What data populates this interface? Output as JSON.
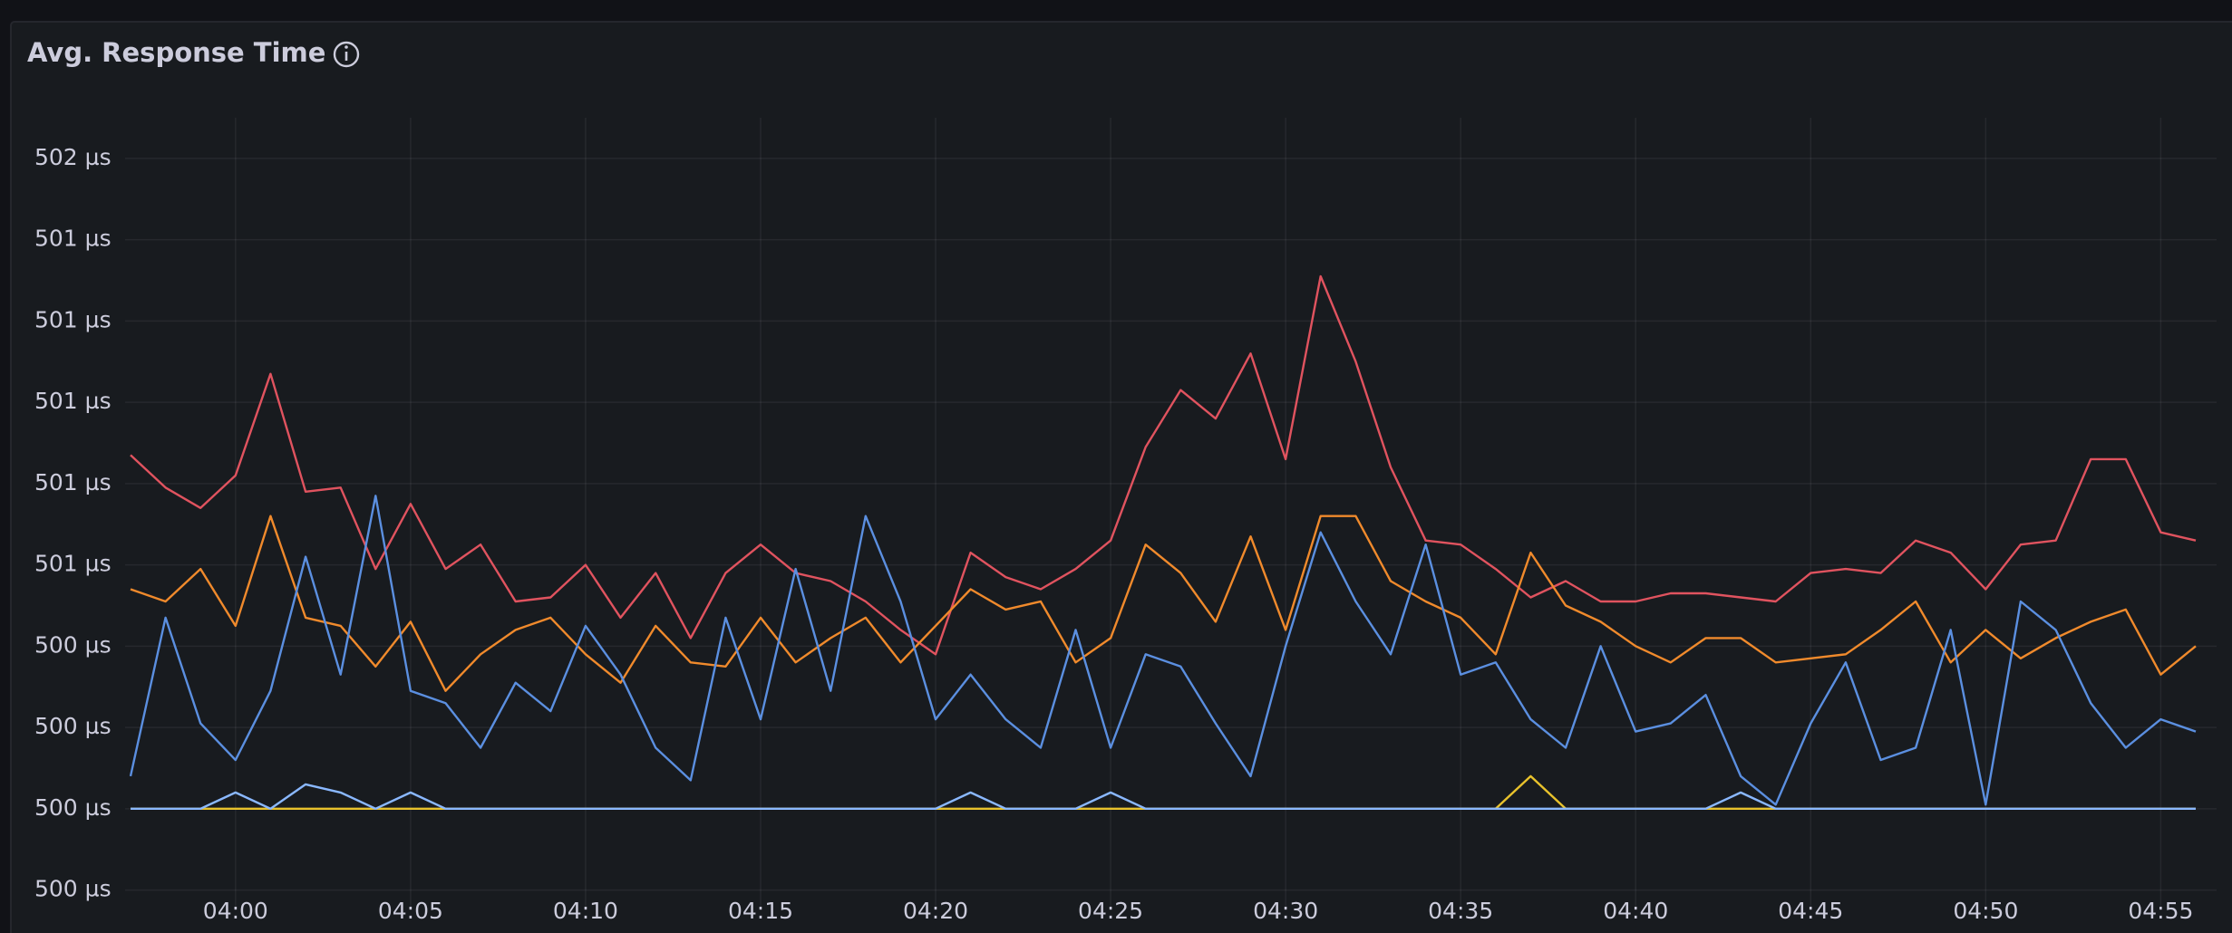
{
  "chart_data": {
    "type": "line",
    "title": "Avg. Response Time",
    "x": [
      "03:57",
      "03:58",
      "03:59",
      "04:00",
      "04:01",
      "04:02",
      "04:03",
      "04:04",
      "04:05",
      "04:06",
      "04:07",
      "04:08",
      "04:09",
      "04:10",
      "04:11",
      "04:12",
      "04:13",
      "04:14",
      "04:15",
      "04:16",
      "04:17",
      "04:18",
      "04:19",
      "04:20",
      "04:21",
      "04:22",
      "04:23",
      "04:24",
      "04:25",
      "04:26",
      "04:27",
      "04:28",
      "04:29",
      "04:30",
      "04:31",
      "04:32",
      "04:33",
      "04:34",
      "04:35",
      "04:36",
      "04:37",
      "04:38",
      "04:39",
      "04:40",
      "04:41",
      "04:42",
      "04:43",
      "04:44",
      "04:45",
      "04:46",
      "04:47",
      "04:48",
      "04:49",
      "04:50",
      "04:51",
      "04:52",
      "04:53",
      "04:54",
      "04:55",
      "04:56"
    ],
    "xticks": [
      "04:00",
      "04:05",
      "04:10",
      "04:15",
      "04:20",
      "04:25",
      "04:30",
      "04:35",
      "04:40",
      "04:45",
      "04:50",
      "04:55"
    ],
    "ylim": [
      499.75,
      501.7
    ],
    "yticks": [
      {
        "value": 499.8,
        "label": "500 µs"
      },
      {
        "value": 500.0,
        "label": "500 µs"
      },
      {
        "value": 500.2,
        "label": "500 µs"
      },
      {
        "value": 500.4,
        "label": "500 µs"
      },
      {
        "value": 500.6,
        "label": "501 µs"
      },
      {
        "value": 500.8,
        "label": "501 µs"
      },
      {
        "value": 501.0,
        "label": "501 µs"
      },
      {
        "value": 501.2,
        "label": "501 µs"
      },
      {
        "value": 501.4,
        "label": "501 µs"
      },
      {
        "value": 501.6,
        "label": "502 µs"
      }
    ],
    "grid": true,
    "series": [
      {
        "color": "#e0535f",
        "values": [
          500.87,
          500.79,
          500.74,
          500.82,
          501.07,
          500.78,
          500.79,
          500.59,
          500.75,
          500.59,
          500.65,
          500.51,
          500.52,
          500.6,
          500.47,
          500.58,
          500.42,
          500.58,
          500.65,
          500.58,
          500.56,
          500.51,
          500.44,
          500.38,
          500.63,
          500.57,
          500.54,
          500.59,
          500.66,
          500.89,
          501.03,
          500.96,
          501.12,
          500.86,
          501.31,
          501.1,
          500.84,
          500.66,
          500.65,
          500.59,
          500.52,
          500.56,
          500.51,
          500.51,
          500.53,
          500.53,
          500.52,
          500.51,
          500.58,
          500.59,
          500.58,
          500.66,
          500.63,
          500.54,
          500.65,
          500.66,
          500.86,
          500.86,
          500.68,
          500.66
        ]
      },
      {
        "color": "#f08a2c",
        "values": [
          500.54,
          500.51,
          500.59,
          500.45,
          500.72,
          500.47,
          500.45,
          500.35,
          500.46,
          500.29,
          500.38,
          500.44,
          500.47,
          500.38,
          500.31,
          500.45,
          500.36,
          500.35,
          500.47,
          500.36,
          500.42,
          500.47,
          500.36,
          500.45,
          500.54,
          500.49,
          500.51,
          500.36,
          500.42,
          500.65,
          500.58,
          500.46,
          500.67,
          500.44,
          500.72,
          500.72,
          500.56,
          500.51,
          500.47,
          500.38,
          500.63,
          500.5,
          500.46,
          500.4,
          500.36,
          500.42,
          500.42,
          500.36,
          500.37,
          500.38,
          500.44,
          500.51,
          500.36,
          500.44,
          500.37,
          500.42,
          500.46,
          500.49,
          500.33,
          500.4
        ]
      },
      {
        "color": "#5b8fe0",
        "values": [
          500.08,
          500.47,
          500.21,
          500.12,
          500.29,
          500.62,
          500.33,
          500.77,
          500.29,
          500.26,
          500.15,
          500.31,
          500.24,
          500.45,
          500.33,
          500.15,
          500.07,
          500.47,
          500.22,
          500.59,
          500.29,
          500.72,
          500.51,
          500.22,
          500.33,
          500.22,
          500.15,
          500.44,
          500.15,
          500.38,
          500.35,
          500.21,
          500.08,
          500.4,
          500.68,
          500.51,
          500.38,
          500.65,
          500.33,
          500.36,
          500.22,
          500.15,
          500.4,
          500.19,
          500.21,
          500.28,
          500.08,
          500.01,
          500.21,
          500.36,
          500.12,
          500.15,
          500.44,
          500.01,
          500.51,
          500.44,
          500.26,
          500.15,
          500.22,
          500.19
        ]
      },
      {
        "color": "#e8c22c",
        "values": [
          500.0,
          500.0,
          500.0,
          500.0,
          500.0,
          500.0,
          500.0,
          500.0,
          500.0,
          500.0,
          500.0,
          500.0,
          500.0,
          500.0,
          500.0,
          500.0,
          500.0,
          500.0,
          500.0,
          500.0,
          500.0,
          500.0,
          500.0,
          500.0,
          500.0,
          500.0,
          500.0,
          500.0,
          500.0,
          500.0,
          500.0,
          500.0,
          500.0,
          500.0,
          500.0,
          500.0,
          500.0,
          500.0,
          500.0,
          500.0,
          500.08,
          500.0,
          500.0,
          500.0,
          500.0,
          500.0,
          500.0,
          500.0,
          500.0,
          500.0,
          500.0,
          500.0,
          500.0,
          500.0,
          500.0,
          500.0,
          500.0,
          500.0,
          500.0,
          500.0
        ]
      },
      {
        "color": "#8ab8ff",
        "values": [
          500.0,
          500.0,
          500.0,
          500.04,
          500.0,
          500.06,
          500.04,
          500.0,
          500.04,
          500.0,
          500.0,
          500.0,
          500.0,
          500.0,
          500.0,
          500.0,
          500.0,
          500.0,
          500.0,
          500.0,
          500.0,
          500.0,
          500.0,
          500.0,
          500.04,
          500.0,
          500.0,
          500.0,
          500.04,
          500.0,
          500.0,
          500.0,
          500.0,
          500.0,
          500.0,
          500.0,
          500.0,
          500.0,
          500.0,
          500.0,
          500.0,
          500.0,
          500.0,
          500.0,
          500.0,
          500.0,
          500.04,
          500.0,
          500.0,
          500.0,
          500.0,
          500.0,
          500.0,
          500.0,
          500.0,
          500.0,
          500.0,
          500.0,
          500.0,
          500.0
        ]
      }
    ]
  }
}
